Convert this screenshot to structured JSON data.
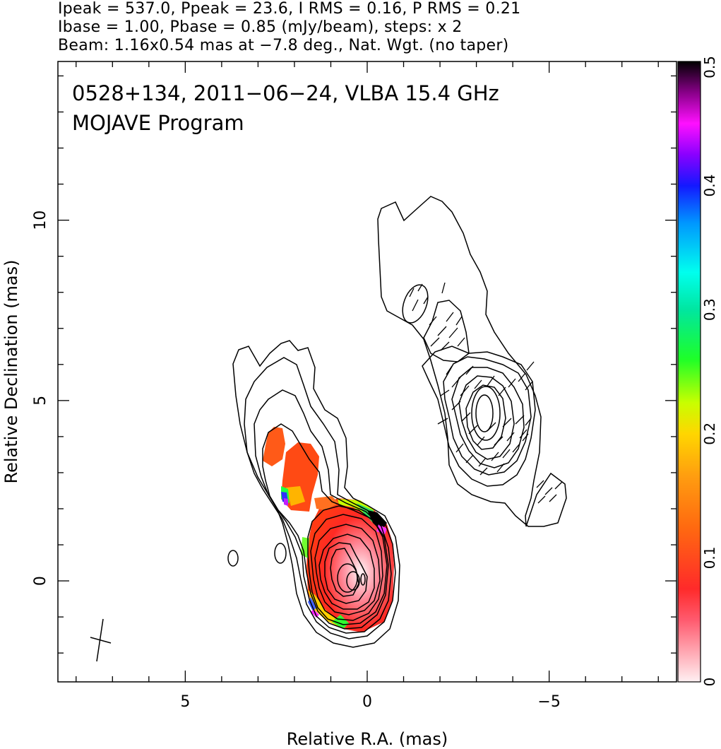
{
  "header": {
    "line1": "Ipeak = 537.0, Ppeak = 23.6, I RMS = 0.16, P RMS = 0.21",
    "line2": "Ibase = 1.00, Pbase = 0.85 (mJy/beam), steps: x 2",
    "line3": "Beam: 1.16x0.54 mas at −7.8 deg., Nat. Wgt. (no taper)"
  },
  "annotation": {
    "line1": "0528+134, 2011−06−24, VLBA 15.4 GHz",
    "line2": "MOJAVE Program"
  },
  "chart_data": {
    "type": "heatmap",
    "xlabel": "Relative R.A. (mas)",
    "ylabel": "Relative Declination (mas)",
    "xlim": [
      8.5,
      -8.5
    ],
    "ylim": [
      -2.8,
      14.4
    ],
    "xticks": [
      {
        "value": 5,
        "label": "5"
      },
      {
        "value": 0,
        "label": "0"
      },
      {
        "value": -5,
        "label": "−5"
      }
    ],
    "yticks": [
      {
        "value": 0,
        "label": "0"
      },
      {
        "value": 5,
        "label": "5"
      },
      {
        "value": 10,
        "label": "10"
      }
    ],
    "colorbar": {
      "range": [
        0,
        0.5
      ],
      "ticks": [
        {
          "value": 0,
          "label": "0"
        },
        {
          "value": 0.1,
          "label": "0.1"
        },
        {
          "value": 0.2,
          "label": "0.2"
        },
        {
          "value": 0.3,
          "label": "0.3"
        },
        {
          "value": 0.4,
          "label": "0.4"
        },
        {
          "value": 0.5,
          "label": "0.5"
        }
      ]
    },
    "beam": {
      "major_mas": 1.16,
      "minor_mas": 0.54,
      "pa_deg": -7.8
    },
    "intensity_peak_mas": [
      0,
      0
    ],
    "contour_base_mJy": 1.0,
    "contour_step_factor": 2
  }
}
